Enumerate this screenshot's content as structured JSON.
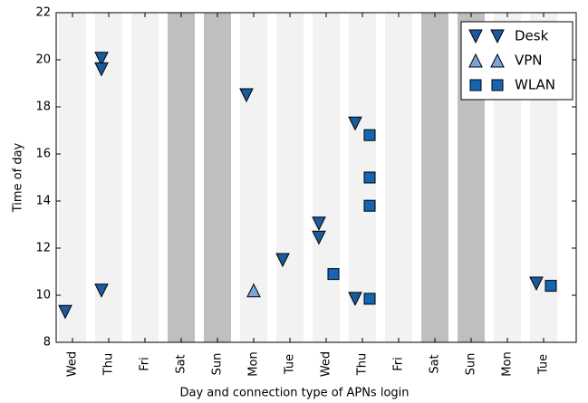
{
  "chart_data": {
    "type": "scatter",
    "xlabel": "Day and connection type of APNs login",
    "ylabel": "Time of day",
    "categories": [
      "Wed",
      "Thu",
      "Fri",
      "Sat",
      "Sun",
      "Mon",
      "Tue",
      "Wed",
      "Thu",
      "Fri",
      "Sat",
      "Sun",
      "Mon",
      "Tue"
    ],
    "band_colors": [
      "#f2f2f2",
      "#f2f2f2",
      "#f2f2f2",
      "#bfbfbf",
      "#bfbfbf",
      "#f2f2f2",
      "#f2f2f2",
      "#f2f2f2",
      "#f2f2f2",
      "#f2f2f2",
      "#bfbfbf",
      "#bfbfbf",
      "#f2f2f2",
      "#f2f2f2"
    ],
    "ylim": [
      8,
      22
    ],
    "yticks": [
      8,
      10,
      12,
      14,
      16,
      18,
      20,
      22
    ],
    "legend": "upper right",
    "series": [
      {
        "name": "Desk",
        "marker": "triangle-down",
        "color": "#1b5a9c",
        "values": [
          [
            9.3
          ],
          [
            20.05,
            19.6,
            10.2
          ],
          [],
          [],
          [],
          [
            18.5
          ],
          [
            11.5
          ],
          [
            13.05,
            12.45
          ],
          [
            17.3,
            9.85
          ],
          [],
          [],
          [],
          [],
          [
            10.5
          ]
        ]
      },
      {
        "name": "VPN",
        "marker": "triangle-up",
        "color": "#7aa6d6",
        "values": [
          [],
          [],
          [],
          [],
          [],
          [
            10.2
          ],
          [],
          [],
          [],
          [],
          [],
          [],
          [],
          []
        ]
      },
      {
        "name": "WLAN",
        "marker": "square",
        "color": "#1565b5",
        "values": [
          [],
          [],
          [],
          [],
          [],
          [],
          [],
          [
            10.9
          ],
          [
            16.8,
            15.0,
            13.8,
            9.85
          ],
          [],
          [],
          [],
          [],
          [
            10.4
          ]
        ]
      }
    ]
  }
}
